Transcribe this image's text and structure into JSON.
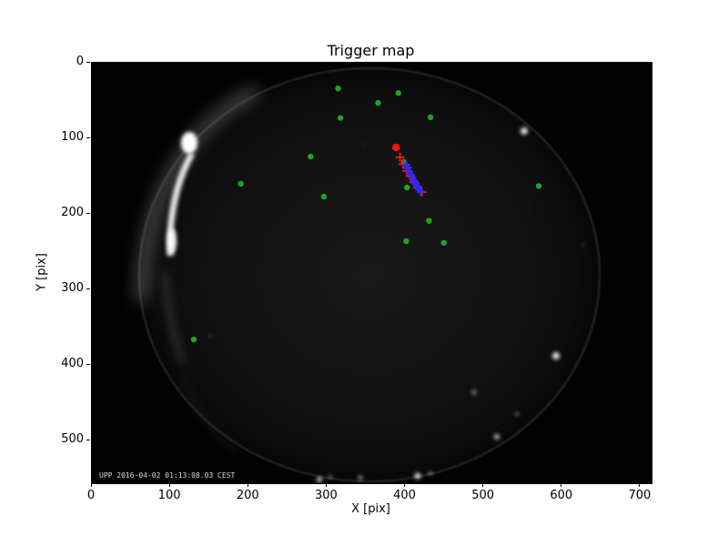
{
  "overlay_text": "UPP 2016-04-02 01:13:08.03 CEST",
  "chart_data": {
    "type": "scatter",
    "title": "Trigger map",
    "xlabel": "X [pix]",
    "ylabel": "Y [pix]",
    "xlim": [
      0,
      714
    ],
    "ylim": [
      556,
      0
    ],
    "y_inverted": true,
    "x_ticks": [
      0,
      100,
      200,
      300,
      400,
      500,
      600,
      700
    ],
    "y_ticks": [
      0,
      100,
      200,
      300,
      400,
      500
    ],
    "grid": false,
    "legend": "none",
    "background": "grayscale all-sky fisheye camera frame; dark circular sky disc with bright moonlit arc on the left rim and faint bright spots along lower rim; camera timestamp overlay bottom-left",
    "series": [
      {
        "name": "trigger-green",
        "label": "isolated trigger pixels",
        "marker": "circle",
        "color": "#1da51d",
        "size": 3.2,
        "points": [
          [
            314,
            34
          ],
          [
            391,
            40
          ],
          [
            365,
            53
          ],
          [
            317,
            73
          ],
          [
            432,
            72
          ],
          [
            279,
            124
          ],
          [
            190,
            160
          ],
          [
            296,
            177
          ],
          [
            398,
            131
          ],
          [
            402,
            165
          ],
          [
            430,
            209
          ],
          [
            449,
            238
          ],
          [
            401,
            236
          ],
          [
            570,
            163
          ],
          [
            130,
            366
          ]
        ]
      },
      {
        "name": "track-red",
        "label": "track fit points",
        "marker": "plus",
        "color": "#ff1010",
        "size": 5,
        "stroke": 1.8,
        "points": [
          [
            393,
            125
          ],
          [
            397,
            134
          ],
          [
            402,
            143
          ],
          [
            406,
            150
          ],
          [
            411,
            158
          ],
          [
            416,
            165
          ],
          [
            421,
            171
          ]
        ]
      },
      {
        "name": "track-head-red",
        "label": "track head",
        "marker": "circle",
        "color": "#ff1010",
        "size": 4.2,
        "points": [
          [
            388,
            112
          ]
        ]
      },
      {
        "name": "track-blue",
        "label": "detected track pixels",
        "marker": "plus",
        "color": "#2b2bff",
        "size": 4.2,
        "stroke": 2.4,
        "points": [
          [
            401,
            135
          ],
          [
            403,
            139
          ],
          [
            405,
            144
          ],
          [
            407,
            148
          ],
          [
            409,
            152
          ],
          [
            411,
            156
          ],
          [
            413,
            160
          ],
          [
            415,
            163
          ],
          [
            417,
            167
          ],
          [
            419,
            170
          ]
        ]
      }
    ]
  }
}
